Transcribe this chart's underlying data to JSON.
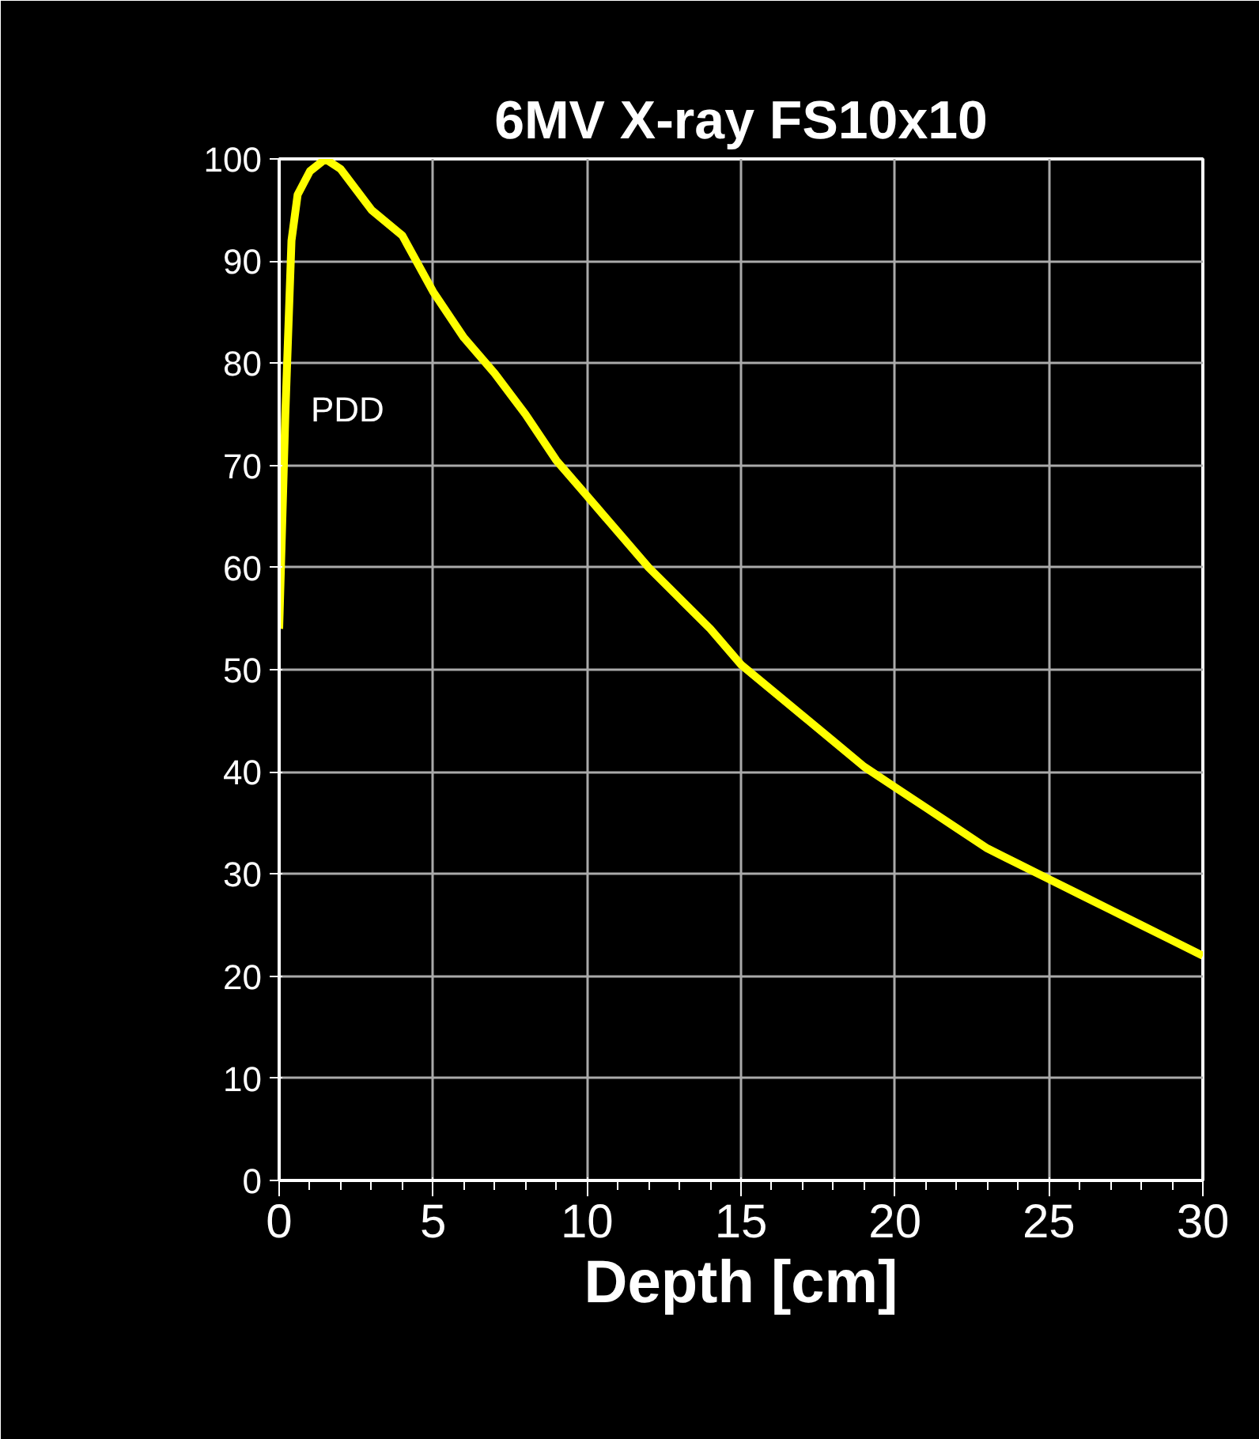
{
  "chart_data": {
    "type": "line",
    "title": "6MV X-ray FS10x10",
    "xlabel": "Depth [cm]",
    "ylabel": "PDD",
    "xlim": [
      0,
      30
    ],
    "xticks": [
      0,
      5,
      10,
      15,
      20,
      25,
      30
    ],
    "ylim": [
      0,
      100
    ],
    "yticks": [
      0,
      10,
      20,
      30,
      40,
      50,
      60,
      70,
      80,
      90,
      100
    ],
    "grid": true,
    "series": [
      {
        "color": "#ffff00",
        "x": [
          0,
          0.2,
          0.4,
          0.6,
          1.0,
          1.5,
          2.0,
          2.5,
          3,
          4,
          5,
          6,
          7,
          8,
          9,
          10,
          11,
          12,
          13,
          14,
          15,
          16,
          17,
          18,
          19,
          20,
          21,
          22,
          23,
          24,
          25,
          26,
          27,
          28,
          29,
          30
        ],
        "values": [
          54,
          75,
          92,
          96.5,
          98.8,
          100,
          99,
          97,
          95,
          92.5,
          87,
          82.5,
          79,
          75,
          70.5,
          67,
          63.5,
          60,
          57,
          54,
          50.5,
          48,
          45.5,
          43,
          40.5,
          38.5,
          36.5,
          34.5,
          32.5,
          31,
          29.5,
          28,
          26.5,
          25,
          23.5,
          22
        ]
      }
    ]
  }
}
